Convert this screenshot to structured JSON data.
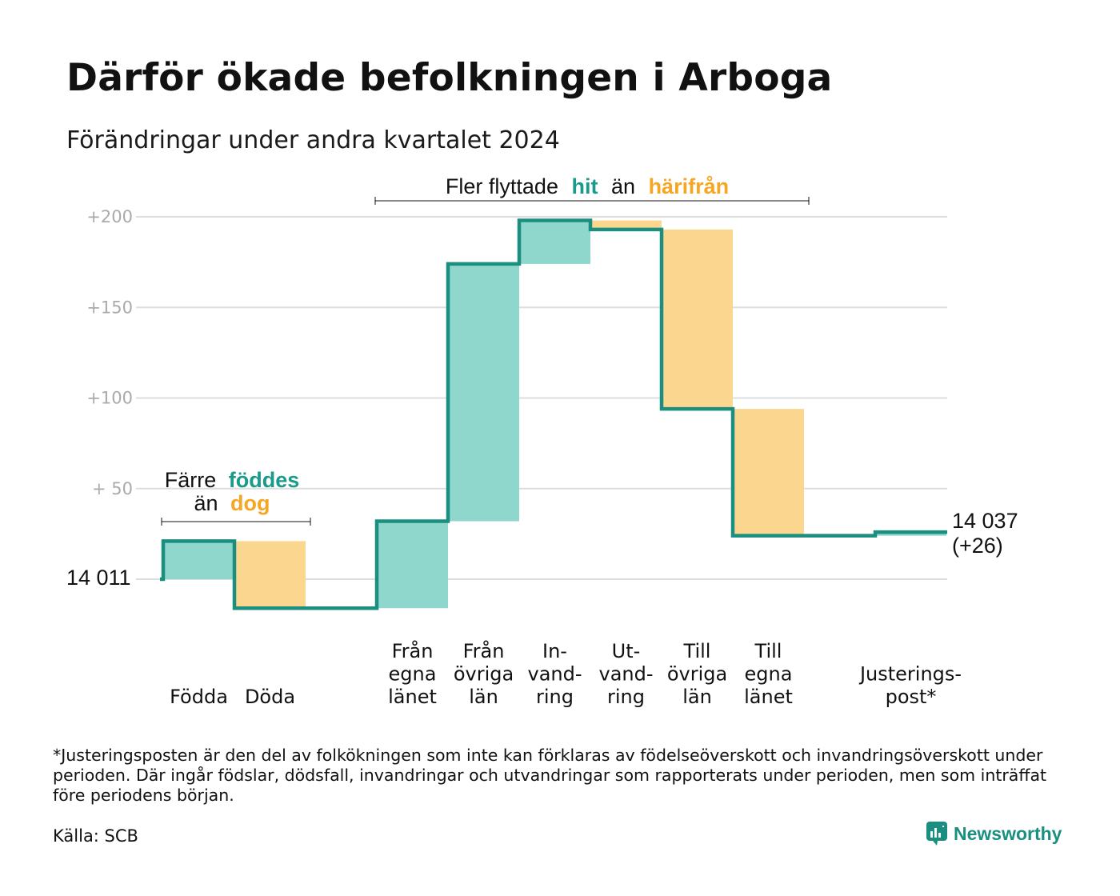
{
  "title": "Därför ökade befolkningen i Arboga",
  "subtitle": "Förändringar under andra kvartalet 2024",
  "colors": {
    "increase": "#8fd6cc",
    "decrease": "#fbd68e",
    "line": "#1a8f80",
    "accent_green": "#1a9a8a",
    "accent_orange": "#f5a623",
    "grid": "#dddddd"
  },
  "chart_data": {
    "type": "bar",
    "subtype": "waterfall",
    "start_value": 14011,
    "start_label": "14  011",
    "end_label": "14 037",
    "end_change_label": "(+26)",
    "y_ticks": [
      {
        "value": 200,
        "label": "+200"
      },
      {
        "value": 150,
        "label": "+150"
      },
      {
        "value": 100,
        "label": "+100"
      },
      {
        "value": 50,
        "label": "+  50"
      }
    ],
    "ylim": [
      -20,
      210
    ],
    "steps": [
      {
        "label": [
          "Födda"
        ],
        "change": 21,
        "kind": "increase"
      },
      {
        "label": [
          "Döda"
        ],
        "change": -37,
        "kind": "decrease"
      },
      {
        "label": [],
        "change": 0,
        "kind": "gap"
      },
      {
        "label": [
          "Från",
          "egna",
          "länet"
        ],
        "change": 48,
        "kind": "increase"
      },
      {
        "label": [
          "Från",
          "övriga",
          "län"
        ],
        "change": 142,
        "kind": "increase"
      },
      {
        "label": [
          "In-",
          "vand-",
          "ring"
        ],
        "change": 24,
        "kind": "increase"
      },
      {
        "label": [
          "Ut-",
          "vand-",
          "ring"
        ],
        "change": -5,
        "kind": "decrease"
      },
      {
        "label": [
          "Till",
          "övriga",
          "län"
        ],
        "change": -99,
        "kind": "decrease"
      },
      {
        "label": [
          "Till",
          "egna",
          "länet"
        ],
        "change": -70,
        "kind": "decrease"
      },
      {
        "label": [],
        "change": 0,
        "kind": "gap"
      },
      {
        "label": [
          "Justerings-",
          "post*"
        ],
        "change": 2,
        "kind": "increase"
      }
    ],
    "annotations": {
      "births": {
        "line1": "Färre",
        "line1_highlight": "föddes",
        "line2": "än",
        "line2_highlight": "dog"
      },
      "migration": {
        "text": "Fler flyttade",
        "highlight_1": "hit",
        "middle": "än",
        "highlight_2": "härifrån"
      }
    }
  },
  "footnote": "*Justeringsposten är den del av folkökningen som inte kan förklaras av födelseöverskott och invandringsöverskott under perioden. Där ingår födslar, dödsfall, invandringar och utvandringar som rapporterats under perioden, men som inträffat före periodens början.",
  "source": "Källa: SCB",
  "brand": "Newsworthy",
  "brand_icon": "newsworthy-logo-icon"
}
